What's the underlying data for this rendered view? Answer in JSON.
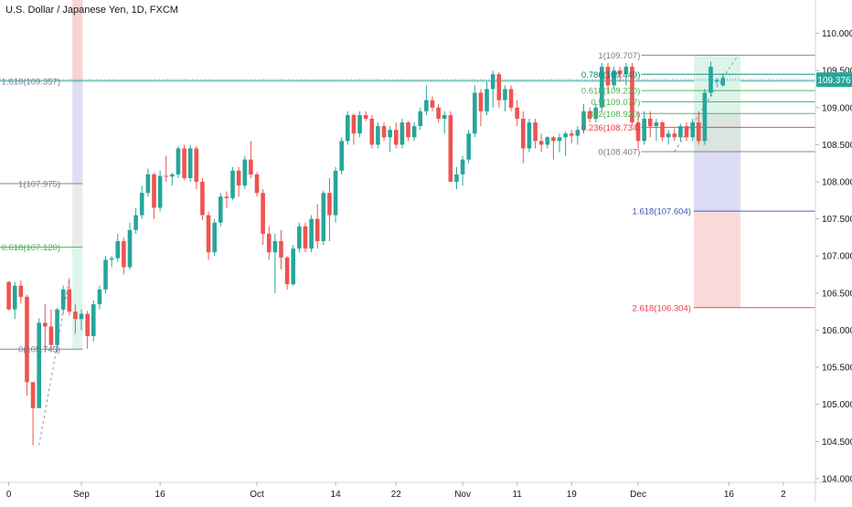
{
  "title": "U.S. Dollar / Japanese Yen, 1D, FXCM",
  "chart_data": {
    "type": "candlestick",
    "title": "U.S. Dollar / Japanese Yen, 1D, FXCM",
    "ylim": [
      103.95,
      110.45
    ],
    "y_ticks": [
      110.0,
      109.5,
      109.0,
      108.5,
      108.0,
      107.5,
      107.0,
      106.5,
      106.0,
      105.5,
      105.0,
      104.5,
      104.0
    ],
    "y_tick_labels": [
      "110.000",
      "109.500",
      "109.000",
      "108.500",
      "108.000",
      "107.500",
      "107.000",
      "106.500",
      "106.000",
      "105.500",
      "105.000",
      "104.500",
      "104.000"
    ],
    "x_ticks": [
      {
        "index": 0,
        "label": "0"
      },
      {
        "index": 12,
        "label": "Sep"
      },
      {
        "index": 25,
        "label": "16"
      },
      {
        "index": 41,
        "label": "Oct"
      },
      {
        "index": 54,
        "label": "14"
      },
      {
        "index": 64,
        "label": "22"
      },
      {
        "index": 75,
        "label": "Nov"
      },
      {
        "index": 84,
        "label": "11"
      },
      {
        "index": 93,
        "label": "19"
      },
      {
        "index": 104,
        "label": "Dec"
      },
      {
        "index": 119,
        "label": "16"
      },
      {
        "index": 128,
        "label": "2"
      }
    ],
    "current_price": "109.376",
    "up_color": "#26a69a",
    "down_color": "#ef5350",
    "candles": [
      [
        106.65,
        106.66,
        106.27,
        106.28
      ],
      [
        106.28,
        106.65,
        106.15,
        106.6
      ],
      [
        106.6,
        106.67,
        106.36,
        106.45
      ],
      [
        106.45,
        106.48,
        105.12,
        105.3
      ],
      [
        105.3,
        105.3,
        104.45,
        104.95
      ],
      [
        104.95,
        106.16,
        104.95,
        106.1
      ],
      [
        106.1,
        106.35,
        105.7,
        106.05
      ],
      [
        106.05,
        106.28,
        105.72,
        105.8
      ],
      [
        105.8,
        106.3,
        105.7,
        106.28
      ],
      [
        106.28,
        106.6,
        106.22,
        106.55
      ],
      [
        106.55,
        106.7,
        106.2,
        106.25
      ],
      [
        106.25,
        106.35,
        105.95,
        106.15
      ],
      [
        106.15,
        106.28,
        106.0,
        106.22
      ],
      [
        106.22,
        106.26,
        105.75,
        105.92
      ],
      [
        105.92,
        106.4,
        105.85,
        106.35
      ],
      [
        106.35,
        106.6,
        106.28,
        106.55
      ],
      [
        106.55,
        107.0,
        106.5,
        106.95
      ],
      [
        106.95,
        107.0,
        106.85,
        106.97
      ],
      [
        106.97,
        107.3,
        106.92,
        107.2
      ],
      [
        107.2,
        107.25,
        106.75,
        106.85
      ],
      [
        106.85,
        107.45,
        106.82,
        107.35
      ],
      [
        107.35,
        107.65,
        107.3,
        107.55
      ],
      [
        107.55,
        107.95,
        107.5,
        107.85
      ],
      [
        107.85,
        108.18,
        107.8,
        108.1
      ],
      [
        108.1,
        108.12,
        107.5,
        107.65
      ],
      [
        107.65,
        108.15,
        107.6,
        108.08
      ],
      [
        108.08,
        108.35,
        108.0,
        108.07
      ],
      [
        108.07,
        108.12,
        107.95,
        108.1
      ],
      [
        108.1,
        108.48,
        108.05,
        108.45
      ],
      [
        108.45,
        108.5,
        108.02,
        108.05
      ],
      [
        108.05,
        108.5,
        108.0,
        108.45
      ],
      [
        108.45,
        108.48,
        107.9,
        108.0
      ],
      [
        108.0,
        108.05,
        107.48,
        107.55
      ],
      [
        107.55,
        107.6,
        106.95,
        107.05
      ],
      [
        107.05,
        107.5,
        107.0,
        107.45
      ],
      [
        107.45,
        107.85,
        107.4,
        107.8
      ],
      [
        107.8,
        107.87,
        107.65,
        107.78
      ],
      [
        107.78,
        108.2,
        107.75,
        108.15
      ],
      [
        108.15,
        108.2,
        107.8,
        107.95
      ],
      [
        107.95,
        108.35,
        107.9,
        108.3
      ],
      [
        108.3,
        108.55,
        108.05,
        108.1
      ],
      [
        108.1,
        108.13,
        107.8,
        107.85
      ],
      [
        107.85,
        107.9,
        107.15,
        107.3
      ],
      [
        107.3,
        107.4,
        106.95,
        107.05
      ],
      [
        107.05,
        107.3,
        106.5,
        107.2
      ],
      [
        107.2,
        107.35,
        106.82,
        106.98
      ],
      [
        106.98,
        107.0,
        106.55,
        106.62
      ],
      [
        106.62,
        107.15,
        106.6,
        107.1
      ],
      [
        107.1,
        107.45,
        107.05,
        107.4
      ],
      [
        107.4,
        107.45,
        107.05,
        107.1
      ],
      [
        107.1,
        107.55,
        107.05,
        107.5
      ],
      [
        107.5,
        107.7,
        107.1,
        107.2
      ],
      [
        107.2,
        107.88,
        107.15,
        107.85
      ],
      [
        107.85,
        108.05,
        107.2,
        107.55
      ],
      [
        107.55,
        108.2,
        107.45,
        108.15
      ],
      [
        108.15,
        108.6,
        108.1,
        108.55
      ],
      [
        108.55,
        108.95,
        108.5,
        108.9
      ],
      [
        108.9,
        108.92,
        108.5,
        108.65
      ],
      [
        108.65,
        108.95,
        108.6,
        108.9
      ],
      [
        108.9,
        108.95,
        108.82,
        108.85
      ],
      [
        108.85,
        108.9,
        108.45,
        108.5
      ],
      [
        108.5,
        108.8,
        108.45,
        108.75
      ],
      [
        108.75,
        108.8,
        108.55,
        108.6
      ],
      [
        108.6,
        108.75,
        108.4,
        108.7
      ],
      [
        108.7,
        108.8,
        108.45,
        108.5
      ],
      [
        108.5,
        108.85,
        108.45,
        108.8
      ],
      [
        108.8,
        108.82,
        108.55,
        108.6
      ],
      [
        108.6,
        108.8,
        108.55,
        108.75
      ],
      [
        108.75,
        109.0,
        108.7,
        108.95
      ],
      [
        108.95,
        109.3,
        108.9,
        109.1
      ],
      [
        109.1,
        109.15,
        108.95,
        109.0
      ],
      [
        109.0,
        109.05,
        108.8,
        108.85
      ],
      [
        108.85,
        108.95,
        108.65,
        108.9
      ],
      [
        108.9,
        108.95,
        108.0,
        108.0
      ],
      [
        108.0,
        108.2,
        107.9,
        108.1
      ],
      [
        108.1,
        108.35,
        107.95,
        108.3
      ],
      [
        108.3,
        108.7,
        108.25,
        108.65
      ],
      [
        108.65,
        109.3,
        108.6,
        109.2
      ],
      [
        109.2,
        109.25,
        108.75,
        108.95
      ],
      [
        108.95,
        109.35,
        108.9,
        109.25
      ],
      [
        109.25,
        109.5,
        109.0,
        109.45
      ],
      [
        109.45,
        109.48,
        109.0,
        109.1
      ],
      [
        109.1,
        109.3,
        108.95,
        109.25
      ],
      [
        109.25,
        109.3,
        108.95,
        109.0
      ],
      [
        109.0,
        109.1,
        108.75,
        108.85
      ],
      [
        108.85,
        108.95,
        108.25,
        108.45
      ],
      [
        108.45,
        108.85,
        108.4,
        108.8
      ],
      [
        108.8,
        108.85,
        108.45,
        108.55
      ],
      [
        108.55,
        108.65,
        108.4,
        108.5
      ],
      [
        108.5,
        108.62,
        108.45,
        108.6
      ],
      [
        108.6,
        108.62,
        108.3,
        108.55
      ],
      [
        108.55,
        108.65,
        108.4,
        108.6
      ],
      [
        108.6,
        108.68,
        108.35,
        108.65
      ],
      [
        108.65,
        108.7,
        108.52,
        108.62
      ],
      [
        108.62,
        108.75,
        108.5,
        108.7
      ],
      [
        108.7,
        109.05,
        108.65,
        108.95
      ],
      [
        108.95,
        109.0,
        108.8,
        108.85
      ],
      [
        108.85,
        109.05,
        108.8,
        109.0
      ],
      [
        109.0,
        109.6,
        108.95,
        109.55
      ],
      [
        109.55,
        109.6,
        109.2,
        109.3
      ],
      [
        109.3,
        109.55,
        109.25,
        109.5
      ],
      [
        109.5,
        109.55,
        109.35,
        109.45
      ],
      [
        109.45,
        109.6,
        109.3,
        109.55
      ],
      [
        109.55,
        109.6,
        108.75,
        108.8
      ],
      [
        108.8,
        108.95,
        108.45,
        108.55
      ],
      [
        108.55,
        108.95,
        108.5,
        108.85
      ],
      [
        108.85,
        108.95,
        108.6,
        108.75
      ],
      [
        108.75,
        108.85,
        108.55,
        108.8
      ],
      [
        108.8,
        108.82,
        108.55,
        108.6
      ],
      [
        108.6,
        108.7,
        108.5,
        108.65
      ],
      [
        108.65,
        108.72,
        108.55,
        108.6
      ],
      [
        108.6,
        108.78,
        108.55,
        108.75
      ],
      [
        108.75,
        108.8,
        108.55,
        108.6
      ],
      [
        108.6,
        108.85,
        108.55,
        108.8
      ],
      [
        108.8,
        108.95,
        108.5,
        108.55
      ],
      [
        108.55,
        109.25,
        108.5,
        109.2
      ],
      [
        109.2,
        109.62,
        109.15,
        109.55
      ],
      [
        109.35,
        109.4,
        109.3,
        109.37
      ],
      [
        109.3,
        109.45,
        109.28,
        109.4
      ]
    ],
    "fib_left": {
      "x_start": 0,
      "x_end": 12,
      "levels": [
        {
          "label": "1.618(109.357)",
          "value": 109.357,
          "color": "#787b86"
        },
        {
          "label": "1(107.975)",
          "value": 107.975,
          "color": "#787b86"
        },
        {
          "label": "0.618(107.120)",
          "value": 107.12,
          "color": "#4caf50"
        },
        {
          "label": "0(105.745)",
          "value": 105.745,
          "color": "#787b86"
        }
      ]
    },
    "fib_right": {
      "x_start": 100,
      "x_end": 127,
      "levels": [
        {
          "label": "1(109.707)",
          "value": 109.707,
          "color": "#787b86"
        },
        {
          "label": "0.786(109.449)",
          "value": 109.449,
          "color": "#00897b"
        },
        {
          "label": "0.618(109.230)",
          "value": 109.23,
          "color": "#4caf50"
        },
        {
          "label": "0.5(109.077)",
          "value": 109.077,
          "color": "#4caf50"
        },
        {
          "label": "0.382(108.920)",
          "value": 108.92,
          "color": "#4caf50"
        },
        {
          "label": "0.236(108.734)",
          "value": 108.734,
          "color": "#f23645"
        },
        {
          "label": "0(108.407)",
          "value": 108.407,
          "color": "#787b86"
        },
        {
          "label": "1.618(107.604)",
          "value": 107.604,
          "color": "#3f51b5"
        },
        {
          "label": "2.618(106.304)",
          "value": 106.304,
          "color": "#f23645"
        }
      ]
    }
  }
}
